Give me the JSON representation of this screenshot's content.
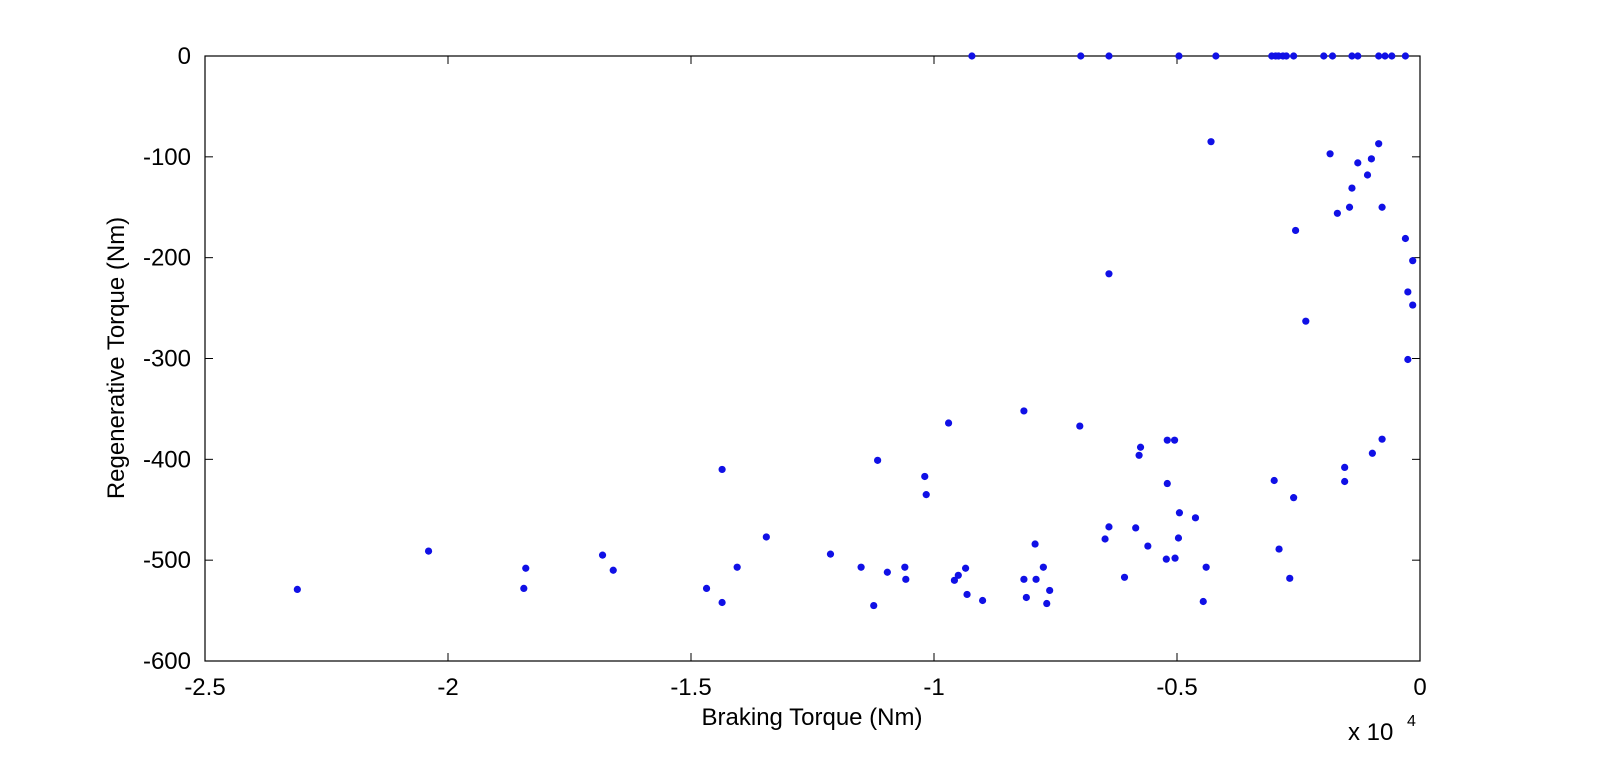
{
  "chart_data": {
    "type": "scatter",
    "title": "",
    "xlabel": "Braking Torque (Nm)",
    "ylabel": "Regenerative Torque (Nm)",
    "x_multiplier_label": "x 10",
    "x_multiplier_exponent": "4",
    "xlim": [
      -2.5,
      0
    ],
    "ylim": [
      -600,
      0
    ],
    "x_ticks": [
      -2.5,
      -2,
      -1.5,
      -1,
      -0.5,
      0
    ],
    "x_tick_labels": [
      "-2.5",
      "-2",
      "-1.5",
      "-1",
      "-0.5",
      "0"
    ],
    "y_ticks": [
      0,
      -100,
      -200,
      -300,
      -400,
      -500,
      -600
    ],
    "y_tick_labels": [
      "0",
      "-100",
      "-200",
      "-300",
      "-400",
      "-500",
      "-600"
    ],
    "grid": false,
    "marker_color": "#1010e6",
    "points": [
      [
        -0.922,
        0
      ],
      [
        -0.698,
        0
      ],
      [
        -0.64,
        0
      ],
      [
        -0.496,
        0
      ],
      [
        -0.42,
        0
      ],
      [
        -0.305,
        0
      ],
      [
        -0.297,
        0
      ],
      [
        -0.291,
        0
      ],
      [
        -0.282,
        0
      ],
      [
        -0.275,
        0
      ],
      [
        -0.26,
        0
      ],
      [
        -0.198,
        0
      ],
      [
        -0.18,
        0
      ],
      [
        -0.14,
        0
      ],
      [
        -0.128,
        0
      ],
      [
        -0.085,
        0
      ],
      [
        -0.072,
        0
      ],
      [
        -0.058,
        0
      ],
      [
        -0.03,
        0
      ],
      [
        -0.43,
        -85
      ],
      [
        -0.085,
        -87
      ],
      [
        -0.185,
        -97
      ],
      [
        -0.1,
        -102
      ],
      [
        -0.128,
        -106
      ],
      [
        -0.108,
        -118
      ],
      [
        -0.14,
        -131
      ],
      [
        -0.145,
        -150
      ],
      [
        -0.078,
        -150
      ],
      [
        -0.17,
        -156
      ],
      [
        -0.256,
        -173
      ],
      [
        -0.03,
        -181
      ],
      [
        -0.015,
        -203
      ],
      [
        -0.025,
        -234
      ],
      [
        -0.015,
        -247
      ],
      [
        -0.235,
        -263
      ],
      [
        -0.64,
        -216
      ],
      [
        -0.025,
        -301
      ],
      [
        -0.815,
        -352
      ],
      [
        -0.97,
        -364
      ],
      [
        -0.7,
        -367
      ],
      [
        -0.52,
        -381
      ],
      [
        -0.505,
        -381
      ],
      [
        -0.078,
        -380
      ],
      [
        -0.575,
        -388
      ],
      [
        -0.578,
        -396
      ],
      [
        -0.098,
        -394
      ],
      [
        -0.155,
        -408
      ],
      [
        -1.436,
        -410
      ],
      [
        -1.116,
        -401
      ],
      [
        -1.019,
        -417
      ],
      [
        -0.155,
        -422
      ],
      [
        -0.3,
        -421
      ],
      [
        -0.52,
        -424
      ],
      [
        -1.016,
        -435
      ],
      [
        -0.26,
        -438
      ],
      [
        -0.495,
        -453
      ],
      [
        -0.462,
        -458
      ],
      [
        -1.345,
        -477
      ],
      [
        -0.64,
        -467
      ],
      [
        -0.585,
        -468
      ],
      [
        -0.648,
        -479
      ],
      [
        -0.497,
        -478
      ],
      [
        -0.792,
        -484
      ],
      [
        -0.29,
        -489
      ],
      [
        -0.56,
        -486
      ],
      [
        -2.04,
        -491
      ],
      [
        -1.682,
        -495
      ],
      [
        -1.213,
        -494
      ],
      [
        -0.522,
        -499
      ],
      [
        -0.504,
        -498
      ],
      [
        -1.84,
        -508
      ],
      [
        -1.66,
        -510
      ],
      [
        -1.405,
        -507
      ],
      [
        -1.15,
        -507
      ],
      [
        -1.06,
        -507
      ],
      [
        -0.935,
        -508
      ],
      [
        -0.775,
        -507
      ],
      [
        -0.44,
        -507
      ],
      [
        -1.096,
        -512
      ],
      [
        -0.95,
        -515
      ],
      [
        -1.058,
        -519
      ],
      [
        -0.958,
        -520
      ],
      [
        -0.608,
        -517
      ],
      [
        -0.815,
        -519
      ],
      [
        -0.79,
        -519
      ],
      [
        -0.268,
        -518
      ],
      [
        -2.31,
        -529
      ],
      [
        -1.844,
        -528
      ],
      [
        -1.468,
        -528
      ],
      [
        -0.762,
        -530
      ],
      [
        -0.932,
        -534
      ],
      [
        -0.81,
        -537
      ],
      [
        -0.9,
        -540
      ],
      [
        -1.436,
        -542
      ],
      [
        -1.124,
        -545
      ],
      [
        -0.768,
        -543
      ],
      [
        -0.446,
        -541
      ]
    ]
  }
}
